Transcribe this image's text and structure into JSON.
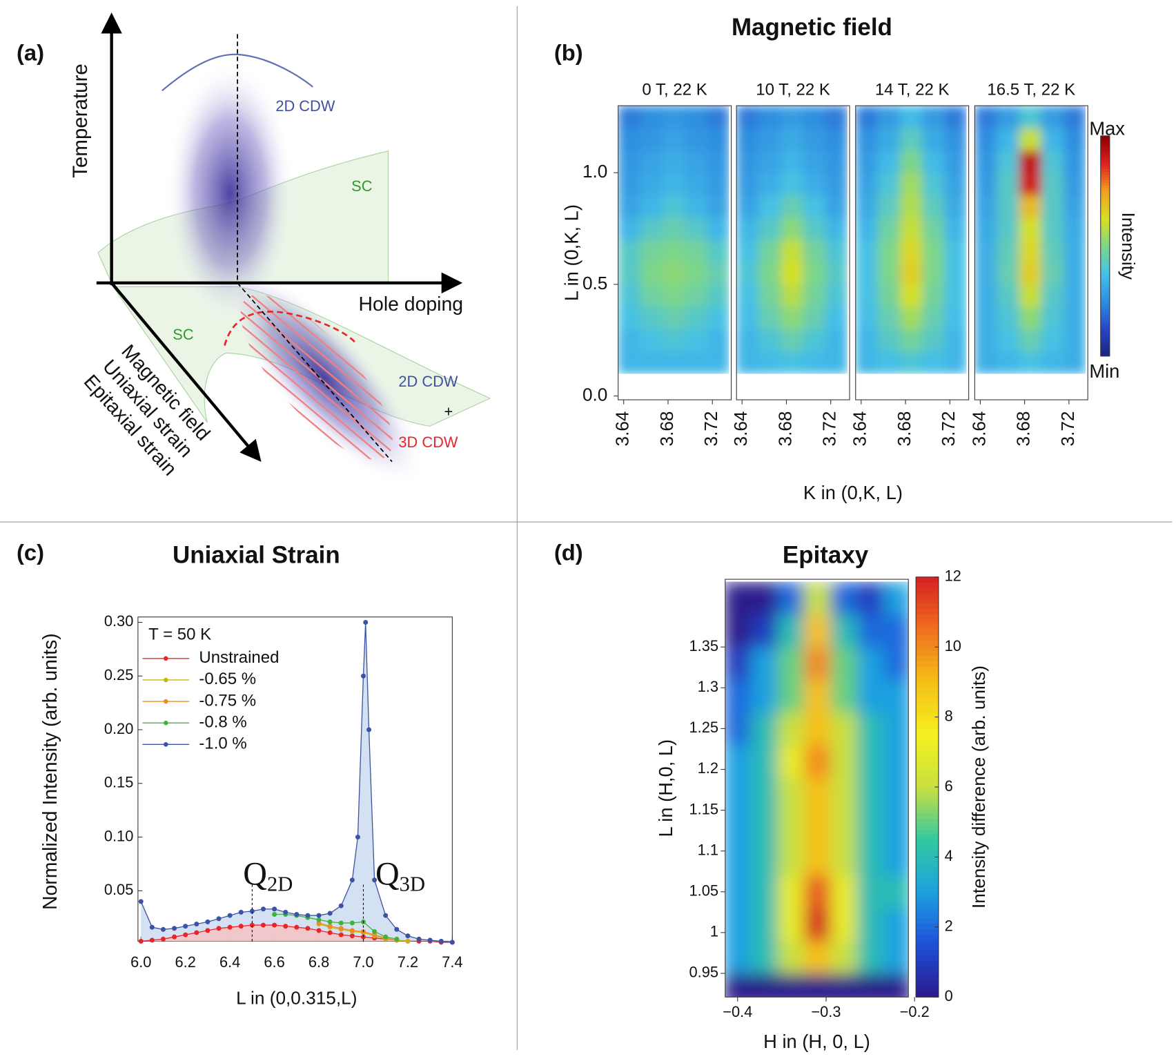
{
  "diagram": {
    "label": "(a)",
    "axis_labels": [
      "Temperature",
      "Hole doping",
      "Magnetic field",
      "Uniaxial strain",
      "Epitaxial strain"
    ],
    "region_labels": [
      "2D CDW",
      "SC",
      "SC",
      "2D CDW",
      "+",
      "3D CDW"
    ]
  },
  "chart_data": [
    {
      "type": "heatmap",
      "label": "(b)",
      "title": "Magnetic field",
      "xlabel": "K in (0,K, L)",
      "ylabel": "L in (0,K, L)",
      "xlim": [
        3.635,
        3.737
      ],
      "xticks": [
        3.64,
        3.68,
        3.72
      ],
      "ylim": [
        -0.017,
        1.3
      ],
      "yticks": [
        {
          "value": 0,
          "label": "0.0"
        },
        0.5,
        {
          "value": 1,
          "label": "1.0"
        }
      ],
      "x": [
        3.645,
        3.665,
        3.685,
        3.705,
        3.725
      ],
      "y": [
        0.15,
        0.25,
        0.35,
        0.45,
        0.55,
        0.65,
        0.75,
        0.85,
        0.95,
        1.05,
        1.15,
        1.25
      ],
      "zlim": [
        0,
        1
      ],
      "colorbar": {
        "label": "Intensity",
        "max_label": "Max",
        "min_label": "Min",
        "colors": [
          "#1a237e",
          "#2845c8",
          "#2f8fe0",
          "#45c0e8",
          "#7dd68a",
          "#d8e020",
          "#f0a020",
          "#e02020",
          "#8b0000"
        ]
      },
      "panels": [
        {
          "title": "0 T, 22 K",
          "z": [
            [
              0.35,
              0.35,
              0.35,
              0.35,
              0.35
            ],
            [
              0.35,
              0.38,
              0.4,
              0.38,
              0.35
            ],
            [
              0.38,
              0.42,
              0.45,
              0.42,
              0.38
            ],
            [
              0.4,
              0.47,
              0.5,
              0.47,
              0.42
            ],
            [
              0.42,
              0.5,
              0.52,
              0.5,
              0.45
            ],
            [
              0.42,
              0.48,
              0.5,
              0.48,
              0.42
            ],
            [
              0.35,
              0.42,
              0.45,
              0.42,
              0.35
            ],
            [
              0.3,
              0.35,
              0.4,
              0.35,
              0.3
            ],
            [
              0.28,
              0.32,
              0.35,
              0.32,
              0.28
            ],
            [
              0.27,
              0.3,
              0.33,
              0.3,
              0.27
            ],
            [
              0.25,
              0.27,
              0.3,
              0.27,
              0.25
            ],
            [
              0.22,
              0.25,
              0.27,
              0.25,
              0.22
            ]
          ]
        },
        {
          "title": "10 T, 22 K",
          "z": [
            [
              0.35,
              0.36,
              0.38,
              0.36,
              0.35
            ],
            [
              0.35,
              0.4,
              0.45,
              0.4,
              0.35
            ],
            [
              0.37,
              0.45,
              0.52,
              0.45,
              0.37
            ],
            [
              0.38,
              0.48,
              0.58,
              0.48,
              0.4
            ],
            [
              0.4,
              0.5,
              0.62,
              0.5,
              0.42
            ],
            [
              0.38,
              0.48,
              0.6,
              0.48,
              0.4
            ],
            [
              0.35,
              0.42,
              0.52,
              0.42,
              0.35
            ],
            [
              0.3,
              0.38,
              0.45,
              0.38,
              0.3
            ],
            [
              0.28,
              0.33,
              0.38,
              0.33,
              0.28
            ],
            [
              0.27,
              0.3,
              0.35,
              0.3,
              0.27
            ],
            [
              0.25,
              0.28,
              0.32,
              0.28,
              0.25
            ],
            [
              0.22,
              0.25,
              0.28,
              0.25,
              0.22
            ]
          ]
        },
        {
          "title": "14 T, 22 K",
          "z": [
            [
              0.35,
              0.37,
              0.4,
              0.37,
              0.35
            ],
            [
              0.35,
              0.42,
              0.48,
              0.42,
              0.35
            ],
            [
              0.37,
              0.45,
              0.55,
              0.45,
              0.37
            ],
            [
              0.38,
              0.48,
              0.62,
              0.48,
              0.38
            ],
            [
              0.38,
              0.5,
              0.66,
              0.5,
              0.38
            ],
            [
              0.38,
              0.5,
              0.64,
              0.5,
              0.38
            ],
            [
              0.35,
              0.47,
              0.6,
              0.47,
              0.35
            ],
            [
              0.32,
              0.43,
              0.57,
              0.43,
              0.32
            ],
            [
              0.3,
              0.4,
              0.55,
              0.4,
              0.3
            ],
            [
              0.28,
              0.36,
              0.5,
              0.36,
              0.28
            ],
            [
              0.26,
              0.32,
              0.43,
              0.32,
              0.26
            ],
            [
              0.22,
              0.28,
              0.36,
              0.28,
              0.22
            ]
          ]
        },
        {
          "title": "16.5 T, 22 K",
          "z": [
            [
              0.33,
              0.35,
              0.38,
              0.35,
              0.33
            ],
            [
              0.33,
              0.38,
              0.45,
              0.38,
              0.33
            ],
            [
              0.33,
              0.4,
              0.52,
              0.4,
              0.33
            ],
            [
              0.33,
              0.42,
              0.6,
              0.42,
              0.33
            ],
            [
              0.33,
              0.45,
              0.66,
              0.45,
              0.33
            ],
            [
              0.33,
              0.44,
              0.64,
              0.44,
              0.33
            ],
            [
              0.32,
              0.42,
              0.62,
              0.42,
              0.32
            ],
            [
              0.3,
              0.42,
              0.7,
              0.42,
              0.3
            ],
            [
              0.28,
              0.42,
              0.9,
              0.42,
              0.28
            ],
            [
              0.27,
              0.4,
              0.92,
              0.4,
              0.27
            ],
            [
              0.25,
              0.35,
              0.6,
              0.35,
              0.25
            ],
            [
              0.22,
              0.28,
              0.4,
              0.28,
              0.22
            ]
          ]
        }
      ]
    },
    {
      "type": "line",
      "label": "(c)",
      "title": "Uniaxial Strain",
      "xlabel": "L in (0,0.315,L)",
      "ylabel": "Normalized Intensity (arb. units)",
      "xlim": [
        6.0,
        7.4
      ],
      "xticks": [
        {
          "value": 6,
          "label": "6.0"
        },
        6.2,
        6.4,
        6.6,
        6.8,
        {
          "value": 7,
          "label": "7.0"
        },
        7.2,
        7.4
      ],
      "ylim": [
        0.003,
        0.305
      ],
      "yticks": [
        0.05,
        {
          "value": 0.1,
          "label": "0.10"
        },
        0.15,
        {
          "value": 0.2,
          "label": "0.20"
        },
        0.25,
        {
          "value": 0.3,
          "label": "0.30"
        }
      ],
      "legend_title": "T = 50 K",
      "series": [
        {
          "name": "Unstrained",
          "color": "#e8262a",
          "fill": "#f6c2c2",
          "x": [
            6.0,
            6.05,
            6.1,
            6.15,
            6.2,
            6.25,
            6.3,
            6.35,
            6.4,
            6.45,
            6.5,
            6.55,
            6.6,
            6.65,
            6.7,
            6.75,
            6.8,
            6.85,
            6.9,
            6.95,
            7.0,
            7.05,
            7.1,
            7.15,
            7.2,
            7.25,
            7.3,
            7.35,
            7.4
          ],
          "values": [
            0.003,
            0.004,
            0.005,
            0.007,
            0.009,
            0.011,
            0.013,
            0.015,
            0.016,
            0.017,
            0.018,
            0.018,
            0.018,
            0.017,
            0.016,
            0.015,
            0.013,
            0.011,
            0.009,
            0.008,
            0.007,
            0.006,
            0.005,
            0.004,
            0.003,
            0.003,
            0.003,
            0.002,
            0.002
          ]
        },
        {
          "name": "-0.65 %",
          "color": "#c9b416",
          "x": [
            6.8,
            6.85,
            6.9,
            6.95,
            7.0,
            7.05,
            7.1,
            7.15,
            7.2
          ],
          "values": [
            0.019,
            0.016,
            0.014,
            0.012,
            0.011,
            0.008,
            0.005,
            0.004,
            0.003
          ]
        },
        {
          "name": "-0.75 %",
          "color": "#f08a24",
          "x": [
            6.8,
            6.85,
            6.9,
            6.95,
            7.0,
            7.05,
            7.1,
            7.15
          ],
          "values": [
            0.02,
            0.017,
            0.015,
            0.013,
            0.012,
            0.009,
            0.006,
            0.004
          ]
        },
        {
          "name": "-0.8 %",
          "color": "#3cb53c",
          "x": [
            6.6,
            6.65,
            6.7,
            6.75,
            6.8,
            6.85,
            6.9,
            6.95,
            7.0,
            7.05,
            7.1,
            7.15
          ],
          "values": [
            0.028,
            0.028,
            0.027,
            0.025,
            0.023,
            0.021,
            0.02,
            0.02,
            0.021,
            0.012,
            0.007,
            0.005
          ]
        },
        {
          "name": "-1.0 %",
          "color": "#3a53a4",
          "fill": "#c9d9ef",
          "x": [
            6.0,
            6.05,
            6.1,
            6.15,
            6.2,
            6.25,
            6.3,
            6.35,
            6.4,
            6.45,
            6.5,
            6.55,
            6.6,
            6.65,
            6.7,
            6.75,
            6.8,
            6.85,
            6.9,
            6.95,
            6.975,
            7.0,
            7.01,
            7.025,
            7.05,
            7.1,
            7.15,
            7.2,
            7.25,
            7.3,
            7.35,
            7.4
          ],
          "values": [
            0.04,
            0.016,
            0.014,
            0.015,
            0.017,
            0.019,
            0.021,
            0.024,
            0.027,
            0.03,
            0.031,
            0.033,
            0.033,
            0.03,
            0.028,
            0.027,
            0.027,
            0.029,
            0.036,
            0.06,
            0.1,
            0.25,
            0.3,
            0.2,
            0.06,
            0.027,
            0.014,
            0.008,
            0.005,
            0.004,
            0.003,
            0.002
          ]
        }
      ],
      "annotations": [
        {
          "text": "Q",
          "sub": "2D",
          "x": 6.5
        },
        {
          "text": "Q",
          "sub": "3D",
          "x": 7.0
        }
      ]
    },
    {
      "type": "heatmap",
      "label": "(d)",
      "title": "Epitaxy",
      "xlabel": "H in (H, 0, L)",
      "ylabel": "L in (H,0, L)",
      "xlim": [
        -0.414,
        -0.207
      ],
      "xticks": [
        {
          "value": -0.4,
          "label": "−0.4"
        },
        {
          "value": -0.3,
          "label": "−0.3"
        },
        {
          "value": -0.2,
          "label": "−0.2"
        }
      ],
      "ylim": [
        0.921,
        1.433
      ],
      "yticks": [
        0.95,
        1,
        1.05,
        1.1,
        1.15,
        1.2,
        1.25,
        1.3,
        1.35
      ],
      "x": [
        -0.4,
        -0.37,
        -0.34,
        -0.31,
        -0.28,
        -0.25,
        -0.22
      ],
      "y": [
        0.93,
        0.97,
        1.01,
        1.05,
        1.09,
        1.13,
        1.17,
        1.21,
        1.25,
        1.29,
        1.33,
        1.37,
        1.41
      ],
      "zlim": [
        0,
        12
      ],
      "colorbar": {
        "label": "Intensity difference (arb. units)",
        "ticks": [
          0,
          2,
          4,
          6,
          8,
          10,
          12
        ],
        "colors": [
          "#2a1a8a",
          "#1e4fd8",
          "#1ea0e0",
          "#33c8a0",
          "#c8e040",
          "#f5f020",
          "#f5c018",
          "#f07020",
          "#d62020"
        ]
      },
      "panels": [
        {
          "z": [
            [
              0,
              0,
              0,
              0,
              0,
              0,
              0
            ],
            [
              3,
              4,
              6,
              9,
              6,
              4,
              3
            ],
            [
              3,
              4,
              7,
              12,
              7,
              4,
              3
            ],
            [
              3,
              4,
              7,
              11,
              7,
              4,
              4
            ],
            [
              3,
              4,
              6,
              9,
              6,
              4,
              3
            ],
            [
              3,
              4,
              6,
              9,
              6,
              4,
              3
            ],
            [
              3,
              4,
              6,
              9,
              6,
              4,
              3
            ],
            [
              3,
              4,
              7,
              10,
              6,
              4,
              3
            ],
            [
              2,
              4,
              6,
              9,
              6,
              4,
              3
            ],
            [
              2,
              3,
              5,
              9,
              5,
              3,
              3
            ],
            [
              1,
              3,
              5,
              10,
              5,
              3,
              2
            ],
            [
              0,
              1,
              4,
              9,
              4,
              2,
              2
            ],
            [
              0,
              0,
              2,
              6,
              2,
              1,
              3
            ]
          ]
        }
      ]
    }
  ]
}
